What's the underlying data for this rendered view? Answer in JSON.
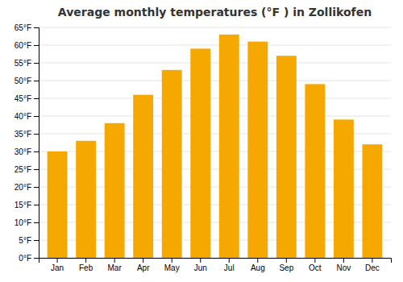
{
  "chart_data": {
    "type": "bar",
    "title": "Average monthly temperatures (°F ) in Zollikofen",
    "categories": [
      "Jan",
      "Feb",
      "Mar",
      "Apr",
      "May",
      "Jun",
      "Jul",
      "Aug",
      "Sep",
      "Oct",
      "Nov",
      "Dec"
    ],
    "values": [
      30,
      33,
      38,
      46,
      53,
      59,
      63,
      61,
      57,
      49,
      39,
      32
    ],
    "color": "#F5A800",
    "ylim": [
      0,
      65
    ],
    "yticks": [
      {
        "value": 0,
        "label": "0°F"
      },
      {
        "value": 5,
        "label": "5°F"
      },
      {
        "value": 10,
        "label": "10°F"
      },
      {
        "value": 15,
        "label": "15°F"
      },
      {
        "value": 20,
        "label": "20°F"
      },
      {
        "value": 25,
        "label": "25°F"
      },
      {
        "value": 30,
        "label": "30°F"
      },
      {
        "value": 35,
        "label": "35°F"
      },
      {
        "value": 40,
        "label": "40°F"
      },
      {
        "value": 45,
        "label": "45°F"
      },
      {
        "value": 50,
        "label": "50°F"
      },
      {
        "value": 55,
        "label": "55°F"
      },
      {
        "value": 60,
        "label": "60°F"
      },
      {
        "value": 65,
        "label": "65°F"
      }
    ],
    "grid": true
  }
}
